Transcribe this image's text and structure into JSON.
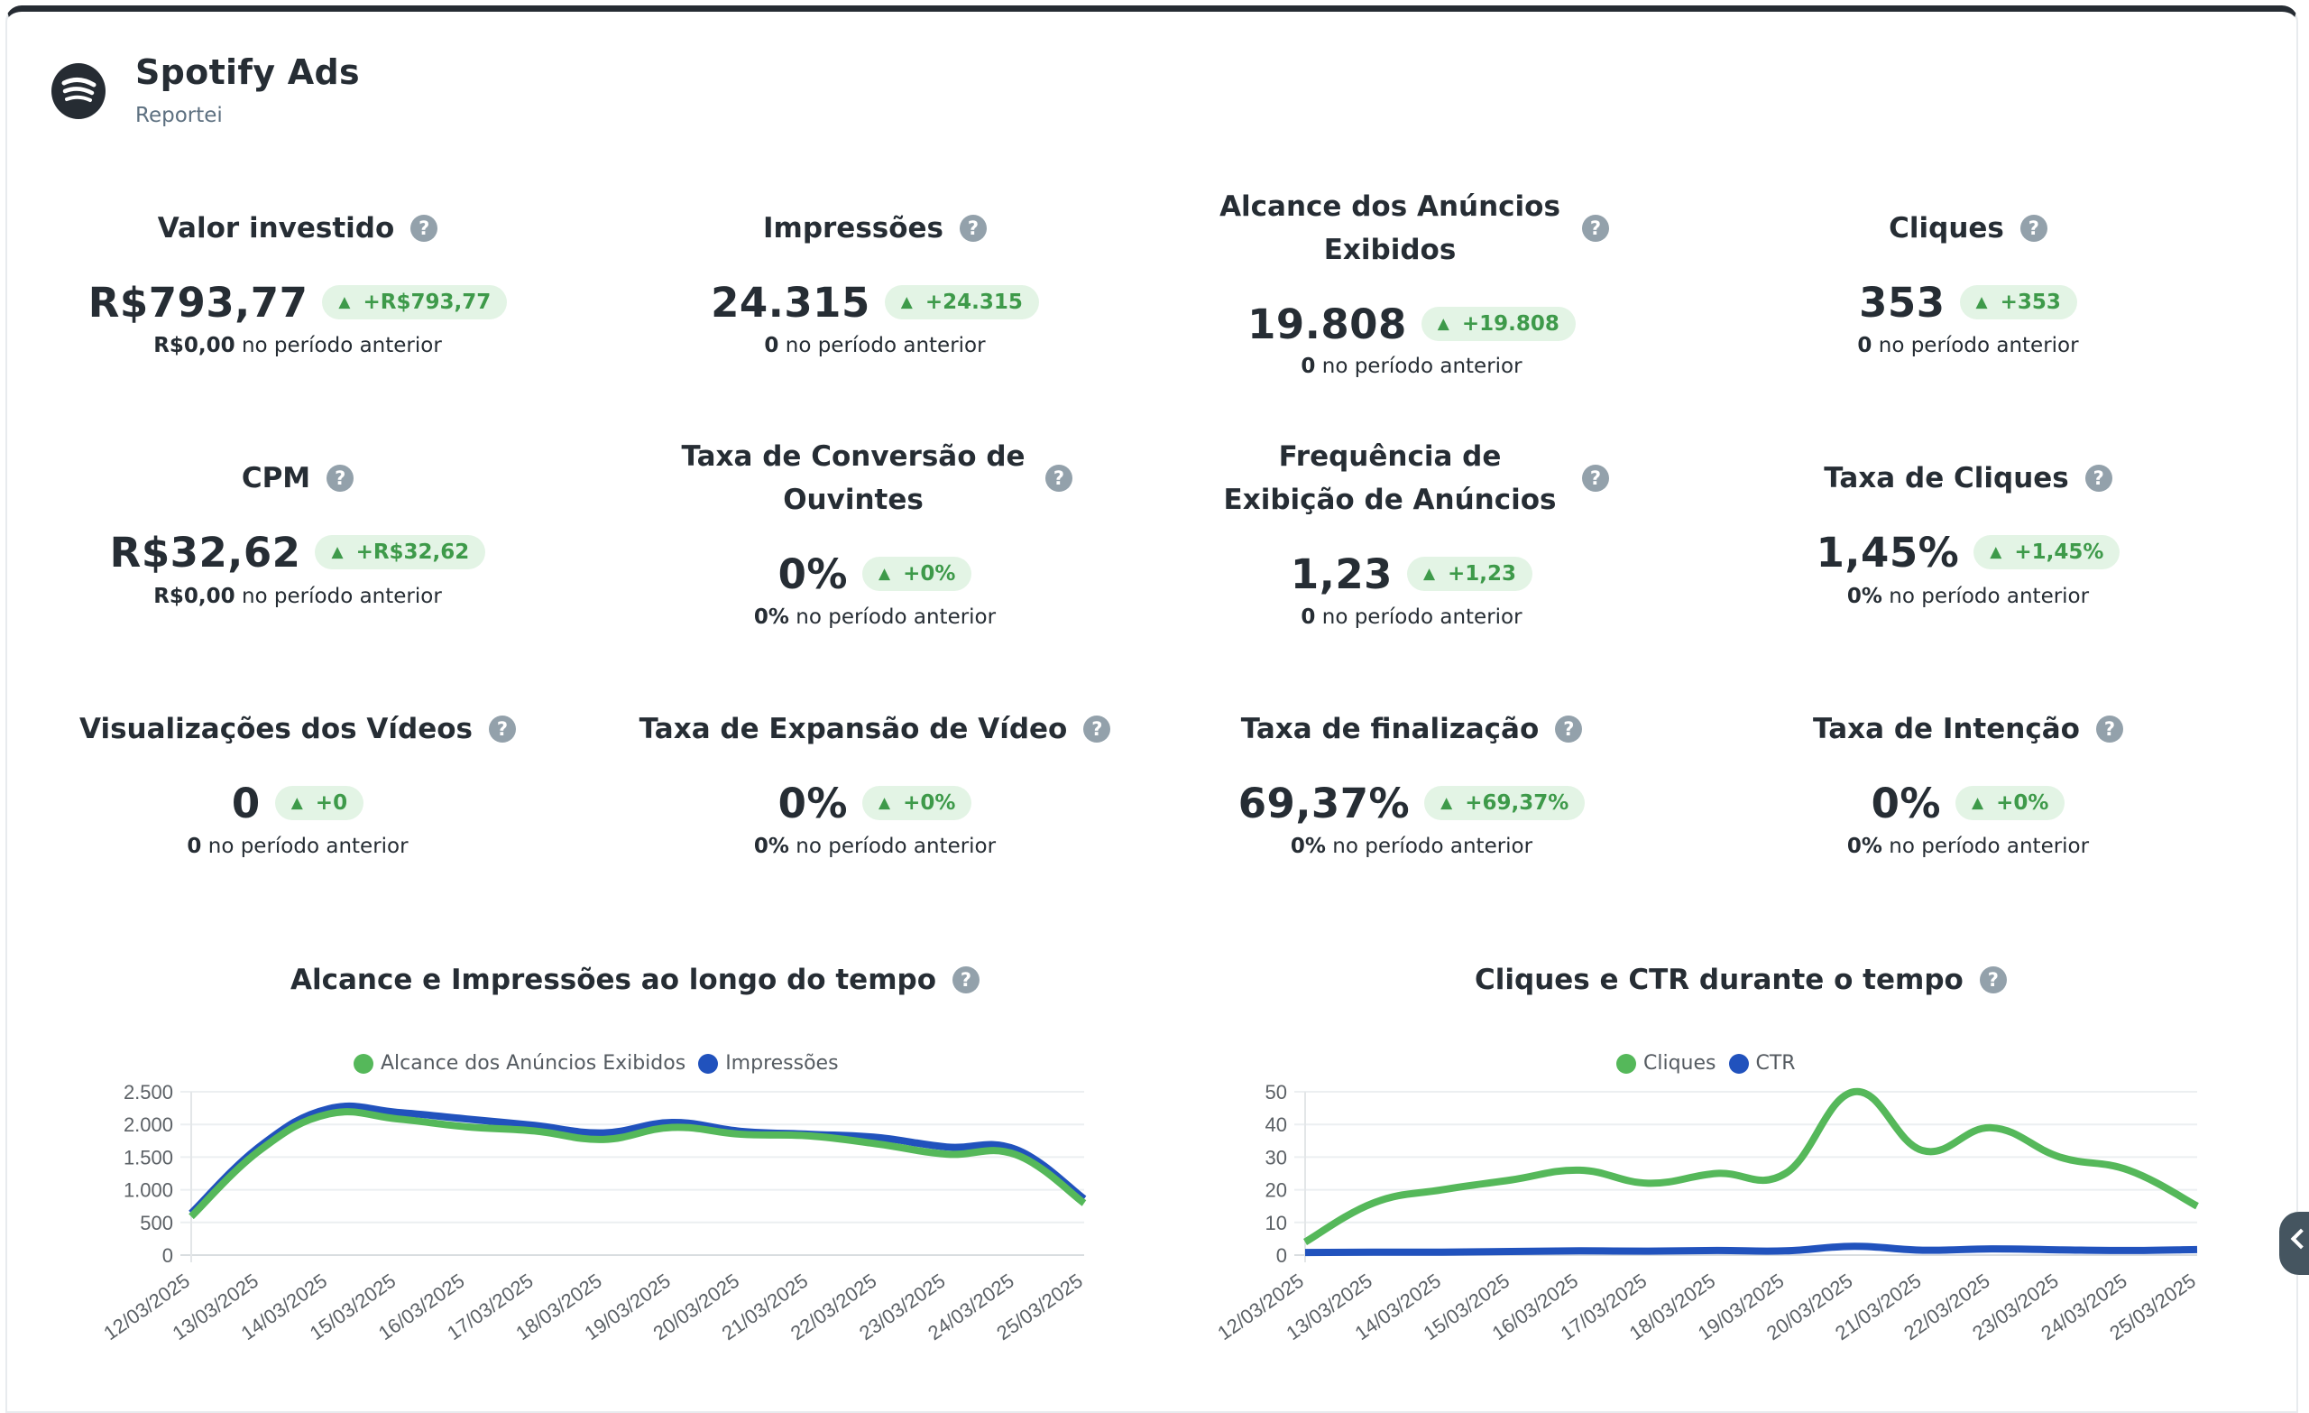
{
  "header": {
    "title": "Spotify Ads",
    "subtitle": "Reportei",
    "logo_icon": "spotify-logo-icon"
  },
  "metrics": [
    {
      "title": "Valor investido",
      "value": "R$793,77",
      "delta": "+R$793,77",
      "prev_value": "R$0,00",
      "prev_suffix": " no período anterior"
    },
    {
      "title": "Impressões",
      "value": "24.315",
      "delta": "+24.315",
      "prev_value": "0",
      "prev_suffix": " no período anterior"
    },
    {
      "title": "Alcance dos Anúncios Exibidos",
      "value": "19.808",
      "delta": "+19.808",
      "prev_value": "0",
      "prev_suffix": " no período anterior"
    },
    {
      "title": "Cliques",
      "value": "353",
      "delta": "+353",
      "prev_value": "0",
      "prev_suffix": " no período anterior"
    },
    {
      "title": "CPM",
      "value": "R$32,62",
      "delta": "+R$32,62",
      "prev_value": "R$0,00",
      "prev_suffix": " no período anterior"
    },
    {
      "title": "Taxa de Conversão de Ouvintes",
      "value": "0%",
      "delta": "+0%",
      "prev_value": "0%",
      "prev_suffix": " no período anterior"
    },
    {
      "title": "Frequência de Exibição de Anúncios",
      "value": "1,23",
      "delta": "+1,23",
      "prev_value": "0",
      "prev_suffix": " no período anterior"
    },
    {
      "title": "Taxa de Cliques",
      "value": "1,45%",
      "delta": "+1,45%",
      "prev_value": "0%",
      "prev_suffix": " no período anterior"
    },
    {
      "title": "Visualizações dos Vídeos",
      "value": "0",
      "delta": "+0",
      "prev_value": "0",
      "prev_suffix": " no período anterior"
    },
    {
      "title": "Taxa de Expansão de Vídeo",
      "value": "0%",
      "delta": "+0%",
      "prev_value": "0%",
      "prev_suffix": " no período anterior"
    },
    {
      "title": "Taxa de finalização",
      "value": "69,37%",
      "delta": "+69,37%",
      "prev_value": "0%",
      "prev_suffix": " no período anterior"
    },
    {
      "title": "Taxa de Intenção",
      "value": "0%",
      "delta": "+0%",
      "prev_value": "0%",
      "prev_suffix": " no período anterior"
    }
  ],
  "help_icon_glyph": "?",
  "delta_arrow_glyph": "▲",
  "colors": {
    "green": "#55b85a",
    "blue": "#2152bd",
    "badge_bg": "#e3f4e5",
    "badge_text": "#3e9a4a",
    "header_bar": "#262c33"
  },
  "chart_data": [
    {
      "type": "line",
      "title": "Alcance e Impressões ao longo do tempo",
      "categories": [
        "12/03/2025",
        "13/03/2025",
        "14/03/2025",
        "15/03/2025",
        "16/03/2025",
        "17/03/2025",
        "18/03/2025",
        "19/03/2025",
        "20/03/2025",
        "21/03/2025",
        "22/03/2025",
        "23/03/2025",
        "24/03/2025",
        "25/03/2025"
      ],
      "series": [
        {
          "name": "Alcance dos Anúncios Exibidos",
          "color": "#55b85a",
          "values": [
            590,
            1605,
            2160,
            2085,
            1965,
            1900,
            1770,
            1955,
            1850,
            1825,
            1700,
            1545,
            1540,
            795
          ]
        },
        {
          "name": "Impressões",
          "color": "#2152bd",
          "values": [
            640,
            1665,
            2240,
            2185,
            2085,
            1985,
            1870,
            2030,
            1895,
            1850,
            1800,
            1655,
            1620,
            860
          ]
        }
      ],
      "yticks": [
        "0",
        "500",
        "1.000",
        "1.500",
        "2.000",
        "2.500"
      ],
      "ylim": [
        0,
        2500
      ],
      "xlabel": "",
      "ylabel": "",
      "legend": "top-center",
      "grid": true
    },
    {
      "type": "line",
      "title": "Cliques e CTR durante o tempo",
      "categories": [
        "12/03/2025",
        "13/03/2025",
        "14/03/2025",
        "15/03/2025",
        "16/03/2025",
        "17/03/2025",
        "18/03/2025",
        "19/03/2025",
        "20/03/2025",
        "21/03/2025",
        "22/03/2025",
        "23/03/2025",
        "24/03/2025",
        "25/03/2025"
      ],
      "series": [
        {
          "name": "Cliques",
          "color": "#55b85a",
          "values": [
            4,
            16,
            20,
            23,
            26,
            22,
            25,
            25,
            50,
            32,
            39,
            30,
            26,
            15
          ]
        },
        {
          "name": "CTR",
          "color": "#2152bd",
          "values": [
            0.8,
            0.9,
            0.9,
            1.1,
            1.3,
            1.2,
            1.4,
            1.3,
            2.7,
            1.5,
            1.9,
            1.6,
            1.4,
            1.7
          ]
        }
      ],
      "yticks": [
        "0",
        "10",
        "20",
        "30",
        "40",
        "50"
      ],
      "ylim": [
        0,
        50
      ],
      "xlabel": "",
      "ylabel": "",
      "legend": "top-center",
      "grid": true
    }
  ]
}
